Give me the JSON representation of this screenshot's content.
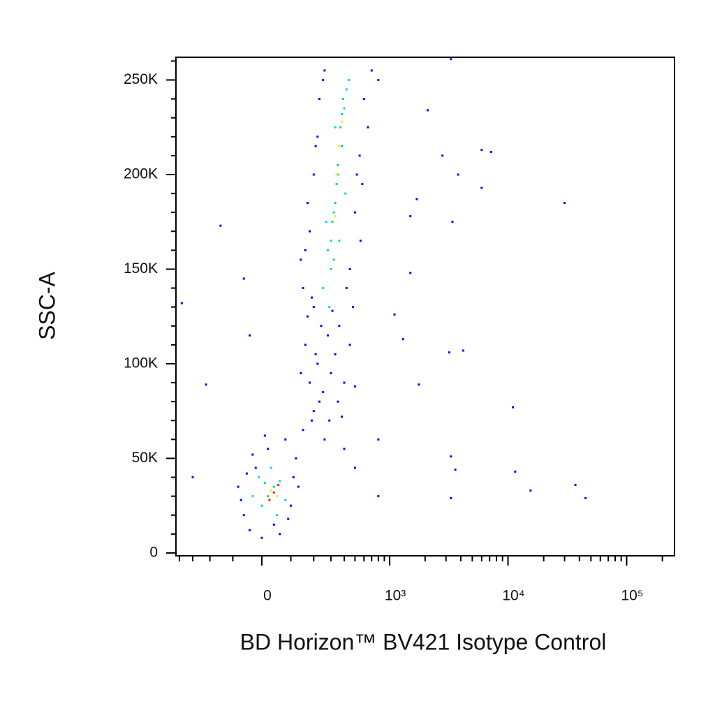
{
  "chart_data": {
    "type": "scatter",
    "xlabel": "BD Horizon™ BV421 Isotype Control",
    "ylabel": "SSC-A",
    "xscale": "biexponential",
    "xlim": [
      -430,
      253000
    ],
    "ylim": [
      -1500,
      262000
    ],
    "xticks": [
      0,
      {
        "value": 1000,
        "label": "10³"
      },
      {
        "value": 10000,
        "label": "10⁴"
      },
      {
        "value": 100000,
        "label": "10⁵"
      }
    ],
    "xminorticks": [
      -400,
      -300,
      -200,
      -100,
      100,
      200,
      300,
      400,
      500,
      600,
      700,
      800,
      900,
      2000,
      3000,
      4000,
      5000,
      6000,
      7000,
      8000,
      9000,
      20000,
      30000,
      40000,
      50000,
      60000,
      70000,
      80000,
      90000,
      200000
    ],
    "yticks": [
      0,
      {
        "value": 50000,
        "label": "50K"
      },
      {
        "value": 100000,
        "label": "100K"
      },
      {
        "value": 150000,
        "label": "150K"
      },
      {
        "value": 200000,
        "label": "200K"
      },
      {
        "value": 250000,
        "label": "250K"
      }
    ],
    "yminorticks": [
      10000,
      20000,
      30000,
      40000,
      60000,
      70000,
      80000,
      90000,
      110000,
      120000,
      130000,
      140000,
      160000,
      170000,
      180000,
      190000,
      210000,
      220000,
      230000,
      240000,
      260000
    ],
    "series": [
      {
        "color": "#0000ff",
        "x": [
          -60,
          -40,
          -20,
          0,
          20,
          40,
          80,
          100,
          120,
          -80,
          -70,
          110,
          60,
          -30,
          90,
          130,
          -50,
          10,
          150,
          200,
          180,
          250,
          220,
          300,
          160,
          280,
          350,
          240,
          190,
          330,
          260,
          400,
          170,
          310,
          210,
          450,
          380,
          140,
          230,
          290,
          360,
          200,
          500,
          150,
          180,
          200,
          220,
          250,
          450,
          500,
          550,
          600,
          700,
          160,
          520,
          230,
          480,
          190,
          650,
          170,
          420,
          260,
          800,
          140,
          560,
          210,
          580,
          1770,
          3200,
          1300,
          1100,
          800,
          1500,
          4200,
          3300,
          3600,
          3300,
          11000,
          11500,
          15500,
          37000,
          45000,
          30000,
          6000,
          7200,
          6000,
          3800,
          2800,
          3400,
          3300,
          2100,
          1500,
          1700,
          -300,
          -380,
          -220,
          -150,
          -40,
          -60,
          800,
          500,
          400
        ],
        "values": [
          20000,
          12000,
          45000,
          8000,
          55000,
          15000,
          60000,
          25000,
          50000,
          35000,
          28000,
          40000,
          10000,
          52000,
          18000,
          35000,
          42000,
          62000,
          65000,
          75000,
          90000,
          85000,
          100000,
          95000,
          110000,
          115000,
          80000,
          120000,
          70000,
          105000,
          60000,
          90000,
          125000,
          128000,
          105000,
          110000,
          72000,
          95000,
          80000,
          70000,
          120000,
          130000,
          88000,
          140000,
          170000,
          200000,
          220000,
          250000,
          150000,
          180000,
          210000,
          240000,
          255000,
          160000,
          200000,
          240000,
          130000,
          135000,
          225000,
          185000,
          140000,
          255000,
          250000,
          155000,
          165000,
          215000,
          195000,
          89000,
          106000,
          113000,
          126000,
          60000,
          148000,
          107000,
          51000,
          44000,
          29000,
          77000,
          43000,
          33000,
          36000,
          29000,
          185000,
          213000,
          212000,
          193000,
          200000,
          210000,
          175000,
          261000,
          234000,
          178000,
          187000,
          40000,
          132000,
          89000,
          173000,
          115000,
          145000,
          30000,
          45000,
          55000
        ]
      },
      {
        "color": "#00d0ff",
        "x": [
          0,
          30,
          60,
          -30,
          80,
          50,
          -10,
          250,
          280,
          320,
          350,
          380,
          400,
          420,
          300,
          270,
          360,
          330,
          410,
          290,
          440
        ],
        "values": [
          25000,
          45000,
          38000,
          30000,
          28000,
          20000,
          40000,
          140000,
          160000,
          180000,
          200000,
          215000,
          235000,
          245000,
          150000,
          175000,
          165000,
          225000,
          190000,
          130000,
          250000
        ]
      },
      {
        "color": "#00e070",
        "x": [
          20,
          40,
          10,
          300,
          330,
          350,
          370,
          390,
          310,
          340,
          320,
          380
        ],
        "values": [
          30000,
          35000,
          37000,
          165000,
          185000,
          205000,
          225000,
          240000,
          175000,
          195000,
          155000,
          232000
        ]
      },
      {
        "color": "#f0f000",
        "x": [
          30,
          50,
          340,
          330,
          360,
          380
        ],
        "values": [
          33000,
          30000,
          200000,
          178000,
          215000,
          228000
        ]
      },
      {
        "color": "#ff2000",
        "x": [
          40,
          25,
          55
        ],
        "values": [
          32000,
          28000,
          36000
        ]
      }
    ]
  }
}
